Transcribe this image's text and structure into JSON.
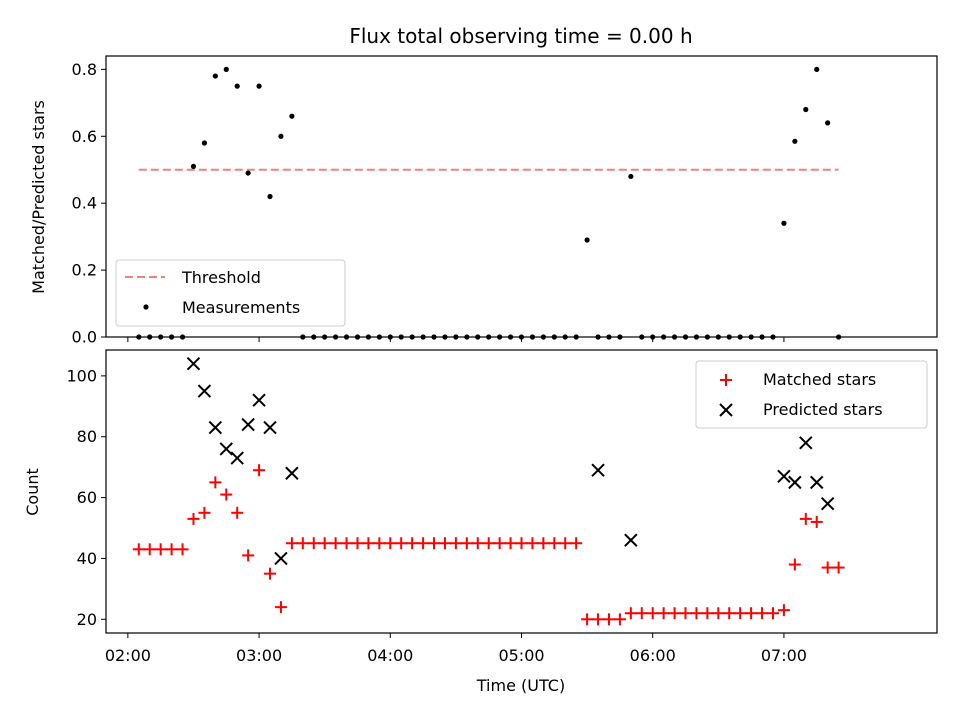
{
  "chart_data": [
    {
      "type": "scatter",
      "title": "Flux total observing time = 0.00 h",
      "ylabel": "Matched/Predicted stars",
      "xlabel": "",
      "xlim": [
        "01:50",
        "08:10"
      ],
      "ylim": [
        0,
        0.84
      ],
      "xticks": [
        "02:00",
        "03:00",
        "04:00",
        "05:00",
        "06:00",
        "07:00"
      ],
      "yticks": [
        "0.0",
        "0.2",
        "0.4",
        "0.6",
        "0.8"
      ],
      "legend_position": "lower-left",
      "series": [
        {
          "name": "Threshold",
          "style": "dashed-line",
          "color": "#f08080",
          "x": [
            "02:05",
            "07:25"
          ],
          "y": [
            0.5,
            0.5
          ]
        },
        {
          "name": "Measurements",
          "style": "dot",
          "color": "#000000",
          "x": [
            "02:05",
            "02:10",
            "02:15",
            "02:20",
            "02:25",
            "02:30",
            "02:35",
            "02:40",
            "02:45",
            "02:50",
            "02:55",
            "03:00",
            "03:05",
            "03:10",
            "03:15",
            "03:20",
            "03:25",
            "03:30",
            "03:35",
            "03:40",
            "03:45",
            "03:50",
            "03:55",
            "04:00",
            "04:05",
            "04:10",
            "04:15",
            "04:20",
            "04:25",
            "04:30",
            "04:35",
            "04:40",
            "04:45",
            "04:50",
            "04:55",
            "05:00",
            "05:05",
            "05:10",
            "05:15",
            "05:20",
            "05:25",
            "05:30",
            "05:35",
            "05:40",
            "05:45",
            "05:50",
            "05:55",
            "06:00",
            "06:05",
            "06:10",
            "06:15",
            "06:20",
            "06:25",
            "06:30",
            "06:35",
            "06:40",
            "06:45",
            "06:50",
            "06:55",
            "07:00",
            "07:05",
            "07:10",
            "07:15",
            "07:20",
            "07:25"
          ],
          "y": [
            0,
            0,
            0,
            0,
            0,
            0.51,
            0.58,
            0.78,
            0.8,
            0.75,
            0.49,
            0.75,
            0.42,
            0.6,
            0.66,
            0,
            0,
            0,
            0,
            0,
            0,
            0,
            0,
            0,
            0,
            0,
            0,
            0,
            0,
            0,
            0,
            0,
            0,
            0,
            0,
            0,
            0,
            0,
            0,
            0,
            0,
            0.29,
            0,
            0,
            0,
            0.48,
            0,
            0,
            0,
            0,
            0,
            0,
            0,
            0,
            0,
            0,
            0,
            0,
            0,
            0.34,
            0.585,
            0.68,
            0.8,
            0.64,
            0
          ]
        }
      ]
    },
    {
      "type": "scatter",
      "title": "",
      "ylabel": "Count",
      "xlabel": "Time (UTC)",
      "xlim": [
        "01:50",
        "08:10"
      ],
      "ylim": [
        15.5,
        108.5
      ],
      "xticks": [
        "02:00",
        "03:00",
        "04:00",
        "05:00",
        "06:00",
        "07:00"
      ],
      "yticks": [
        "20",
        "40",
        "60",
        "80",
        "100"
      ],
      "legend_position": "upper-right",
      "series": [
        {
          "name": "Matched stars",
          "style": "plus",
          "color": "#ff0000",
          "x": [
            "02:05",
            "02:10",
            "02:15",
            "02:20",
            "02:25",
            "02:30",
            "02:35",
            "02:40",
            "02:45",
            "02:50",
            "02:55",
            "03:00",
            "03:05",
            "03:10",
            "03:15",
            "03:20",
            "03:25",
            "03:30",
            "03:35",
            "03:40",
            "03:45",
            "03:50",
            "03:55",
            "04:00",
            "04:05",
            "04:10",
            "04:15",
            "04:20",
            "04:25",
            "04:30",
            "04:35",
            "04:40",
            "04:45",
            "04:50",
            "04:55",
            "05:00",
            "05:05",
            "05:10",
            "05:15",
            "05:20",
            "05:25",
            "05:30",
            "05:35",
            "05:40",
            "05:45",
            "05:50",
            "05:55",
            "06:00",
            "06:05",
            "06:10",
            "06:15",
            "06:20",
            "06:25",
            "06:30",
            "06:35",
            "06:40",
            "06:45",
            "06:50",
            "06:55",
            "07:00",
            "07:05",
            "07:10",
            "07:15",
            "07:20",
            "07:25"
          ],
          "y": [
            43,
            43,
            43,
            43,
            43,
            53,
            55,
            65,
            61,
            55,
            41,
            69,
            35,
            24,
            45,
            45,
            45,
            45,
            45,
            45,
            45,
            45,
            45,
            45,
            45,
            45,
            45,
            45,
            45,
            45,
            45,
            45,
            45,
            45,
            45,
            45,
            45,
            45,
            45,
            45,
            45,
            20,
            20,
            20,
            20,
            22,
            22,
            22,
            22,
            22,
            22,
            22,
            22,
            22,
            22,
            22,
            22,
            22,
            22,
            23,
            38,
            53,
            52,
            37,
            37
          ]
        },
        {
          "name": "Predicted stars",
          "style": "x",
          "color": "#000000",
          "x": [
            "02:30",
            "02:35",
            "02:40",
            "02:45",
            "02:50",
            "02:55",
            "03:00",
            "03:05",
            "03:10",
            "03:15",
            "05:35",
            "05:50",
            "07:00",
            "07:05",
            "07:10",
            "07:15",
            "07:20"
          ],
          "y": [
            104,
            95,
            83,
            76,
            73,
            84,
            92,
            83,
            40,
            68,
            69,
            46,
            67,
            65,
            78,
            65,
            58
          ]
        }
      ]
    }
  ]
}
